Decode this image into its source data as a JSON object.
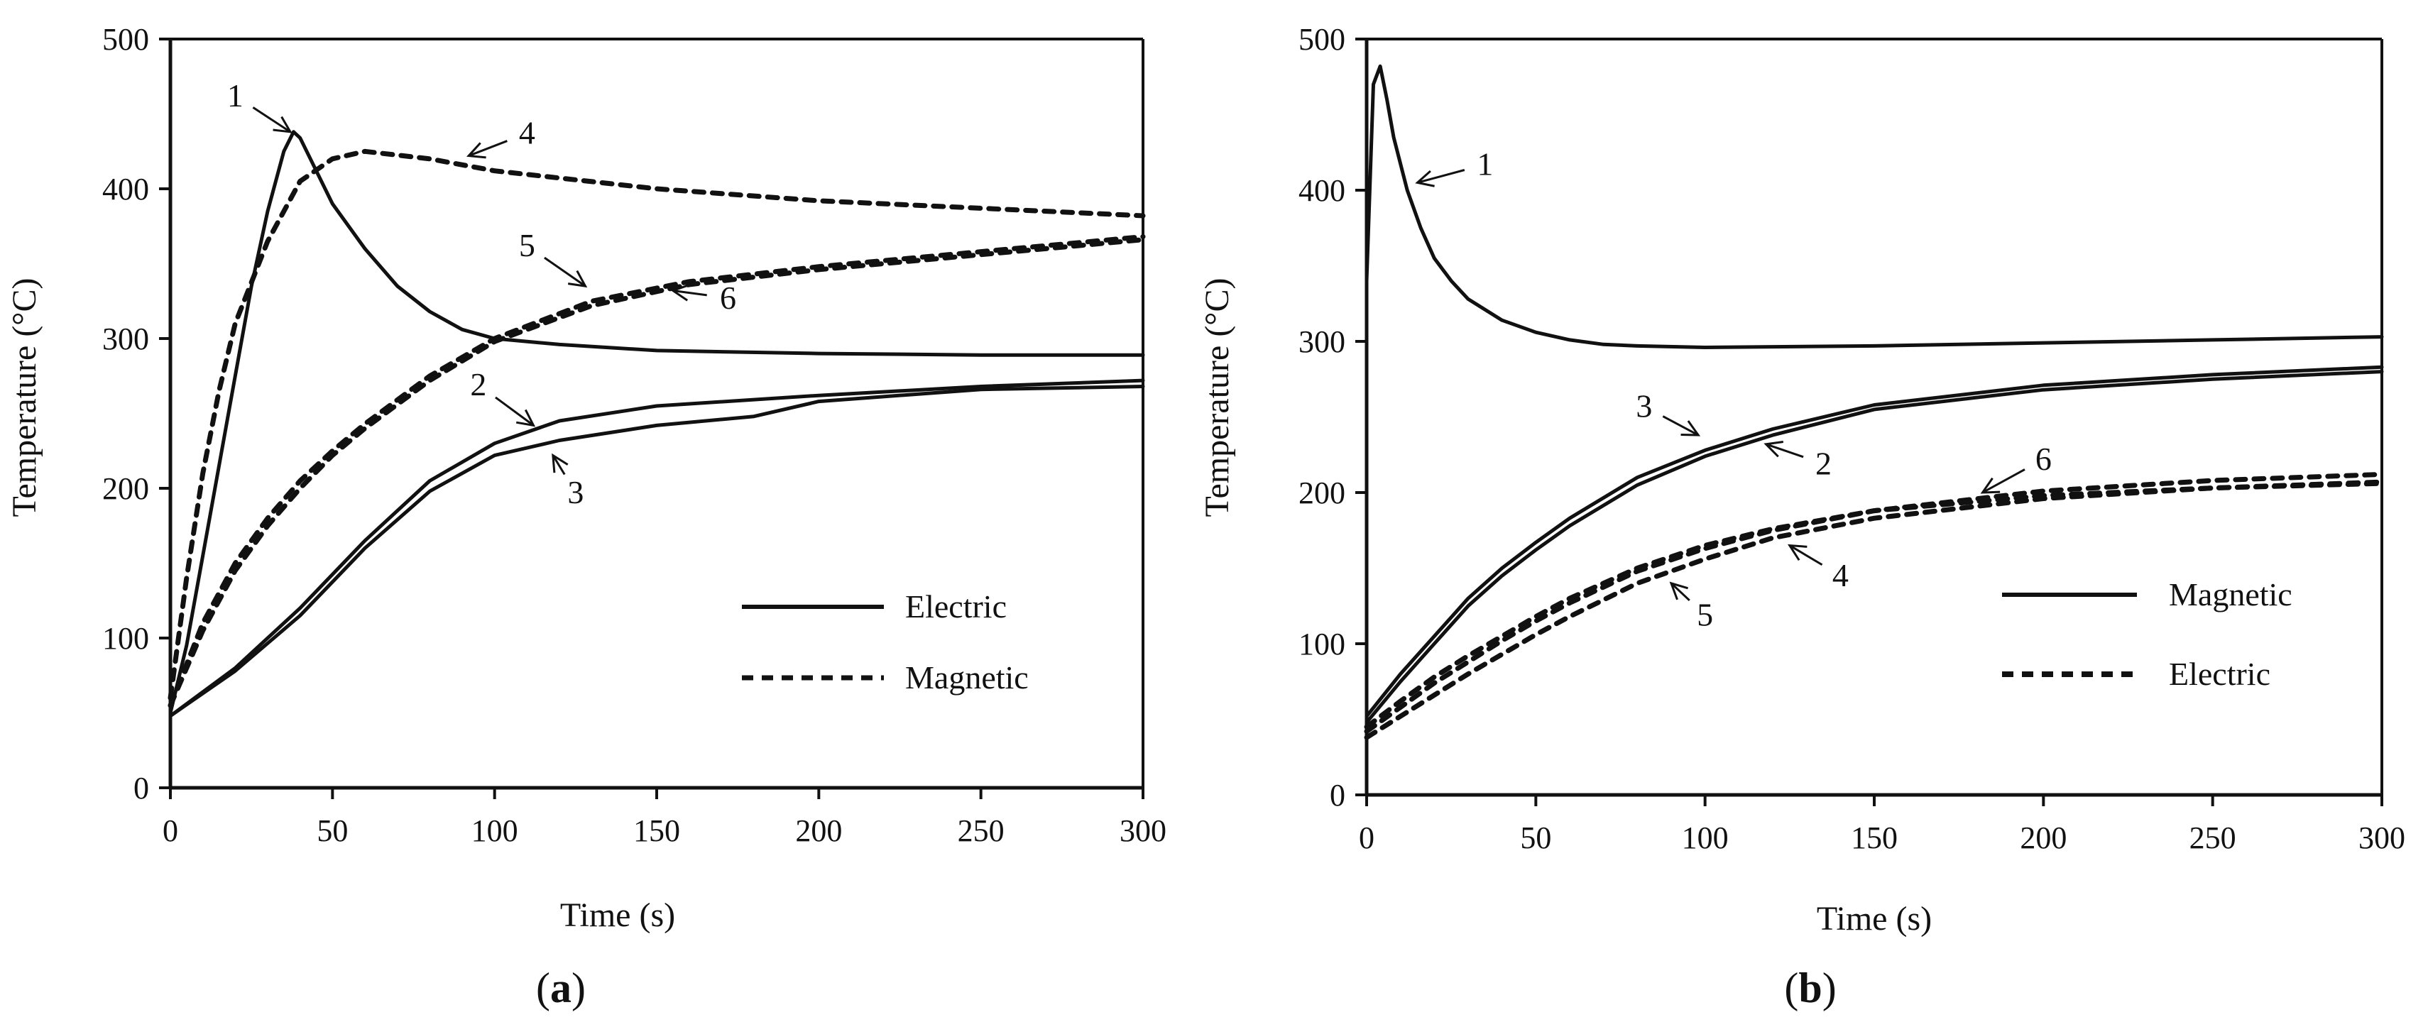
{
  "figure_captions": {
    "a": "(a)",
    "b": "(b)"
  },
  "caption_parts": {
    "a": {
      "open": "(",
      "letter": "a",
      "close": ")"
    },
    "b": {
      "open": "(",
      "letter": "b",
      "close": ")"
    }
  },
  "chart_data": [
    {
      "id": "a",
      "type": "line",
      "title": "",
      "xlabel": "Time (s)",
      "ylabel": "Temperature (°C)",
      "xlim": [
        0,
        300
      ],
      "ylim": [
        0,
        500
      ],
      "xticks": [
        0,
        50,
        100,
        150,
        200,
        250,
        300
      ],
      "yticks": [
        0,
        100,
        200,
        300,
        400,
        500
      ],
      "xtick_labels": [
        "0",
        "50",
        "100",
        "150",
        "200",
        "250",
        "300"
      ],
      "ytick_labels": [
        "0",
        "100",
        "200",
        "300",
        "400",
        "500"
      ],
      "legend": {
        "position": "bottom-right",
        "entries": [
          {
            "label": "Electric",
            "style": "solid"
          },
          {
            "label": "Magnetic",
            "style": "dashed"
          }
        ]
      },
      "series": [
        {
          "name": "1",
          "style": "solid",
          "x": [
            0,
            5,
            10,
            15,
            20,
            25,
            30,
            35,
            38,
            40,
            45,
            50,
            60,
            70,
            80,
            90,
            100,
            120,
            150,
            200,
            250,
            300
          ],
          "y": [
            50,
            95,
            155,
            215,
            275,
            335,
            385,
            425,
            438,
            434,
            412,
            390,
            360,
            335,
            318,
            306,
            300,
            296,
            292,
            290,
            289,
            289
          ]
        },
        {
          "name": "2",
          "style": "solid",
          "x": [
            0,
            20,
            40,
            60,
            80,
            100,
            120,
            150,
            200,
            250,
            300
          ],
          "y": [
            48,
            80,
            120,
            165,
            205,
            230,
            245,
            255,
            262,
            268,
            272
          ]
        },
        {
          "name": "3",
          "style": "solid",
          "x": [
            0,
            20,
            40,
            60,
            80,
            100,
            120,
            150,
            180,
            200,
            250,
            300
          ],
          "y": [
            48,
            78,
            115,
            160,
            198,
            222,
            232,
            242,
            248,
            258,
            266,
            268
          ]
        },
        {
          "name": "4",
          "style": "dashed",
          "x": [
            0,
            5,
            10,
            15,
            20,
            30,
            40,
            50,
            60,
            80,
            100,
            150,
            200,
            250,
            300
          ],
          "y": [
            60,
            140,
            210,
            265,
            310,
            365,
            405,
            420,
            425,
            420,
            412,
            400,
            392,
            387,
            382
          ]
        },
        {
          "name": "5",
          "style": "dashed",
          "x": [
            0,
            10,
            20,
            30,
            40,
            50,
            60,
            80,
            100,
            130,
            160,
            200,
            250,
            300
          ],
          "y": [
            55,
            110,
            150,
            180,
            205,
            225,
            243,
            275,
            300,
            325,
            338,
            348,
            358,
            368
          ]
        },
        {
          "name": "6",
          "style": "dashed",
          "x": [
            0,
            10,
            20,
            30,
            40,
            50,
            60,
            80,
            100,
            130,
            160,
            200,
            250,
            300
          ],
          "y": [
            55,
            105,
            145,
            175,
            200,
            222,
            240,
            272,
            298,
            322,
            336,
            346,
            356,
            366
          ]
        }
      ],
      "annotations": [
        {
          "text": "1",
          "x": 20,
          "y": 455,
          "ax": 37,
          "ay": 438
        },
        {
          "text": "4",
          "x": 110,
          "y": 430,
          "ax": 92,
          "ay": 422
        },
        {
          "text": "5",
          "x": 110,
          "y": 355,
          "ax": 128,
          "ay": 335
        },
        {
          "text": "6",
          "x": 172,
          "y": 320,
          "ax": 155,
          "ay": 332
        },
        {
          "text": "2",
          "x": 95,
          "y": 262,
          "ax": 112,
          "ay": 242
        },
        {
          "text": "3",
          "x": 125,
          "y": 190,
          "ax": 118,
          "ay": 222
        }
      ]
    },
    {
      "id": "b",
      "type": "line",
      "title": "",
      "xlabel": "Time (s)",
      "ylabel": "Temperature (°C)",
      "xlim": [
        0,
        300
      ],
      "ylim": [
        0,
        500
      ],
      "xticks": [
        0,
        50,
        100,
        150,
        200,
        250,
        300
      ],
      "yticks": [
        0,
        100,
        200,
        300,
        400,
        500
      ],
      "xtick_labels": [
        "0",
        "50",
        "100",
        "150",
        "200",
        "250",
        "300"
      ],
      "ytick_labels": [
        "0",
        "100",
        "200",
        "300",
        "400",
        "500"
      ],
      "legend": {
        "position": "bottom-right",
        "entries": [
          {
            "label": "Magnetic",
            "style": "solid"
          },
          {
            "label": "Electric",
            "style": "dashed"
          }
        ]
      },
      "series": [
        {
          "name": "1",
          "style": "solid",
          "x": [
            0,
            2,
            4,
            6,
            8,
            12,
            16,
            20,
            25,
            30,
            40,
            50,
            60,
            70,
            80,
            100,
            150,
            200,
            250,
            300
          ],
          "y": [
            340,
            470,
            482,
            460,
            435,
            400,
            375,
            355,
            340,
            328,
            314,
            306,
            301,
            298,
            297,
            296,
            297,
            299,
            301,
            303
          ]
        },
        {
          "name": "2",
          "style": "solid",
          "x": [
            0,
            10,
            20,
            30,
            40,
            50,
            60,
            80,
            100,
            120,
            150,
            200,
            250,
            300
          ],
          "y": [
            48,
            75,
            100,
            125,
            145,
            162,
            178,
            205,
            224,
            238,
            255,
            268,
            275,
            280
          ]
        },
        {
          "name": "3",
          "style": "solid",
          "x": [
            0,
            10,
            20,
            30,
            40,
            50,
            60,
            80,
            100,
            120,
            150,
            200,
            250,
            300
          ],
          "y": [
            52,
            80,
            105,
            130,
            150,
            167,
            183,
            210,
            228,
            242,
            258,
            271,
            278,
            283
          ]
        },
        {
          "name": "4",
          "style": "dashed",
          "x": [
            0,
            10,
            20,
            30,
            40,
            50,
            60,
            80,
            100,
            120,
            150,
            200,
            250,
            300
          ],
          "y": [
            45,
            62,
            78,
            92,
            105,
            118,
            130,
            150,
            165,
            176,
            188,
            198,
            203,
            206
          ]
        },
        {
          "name": "5",
          "style": "dashed",
          "x": [
            0,
            10,
            20,
            30,
            40,
            50,
            60,
            80,
            100,
            120,
            150,
            200,
            250,
            300
          ],
          "y": [
            38,
            52,
            66,
            80,
            93,
            106,
            118,
            140,
            156,
            170,
            183,
            196,
            203,
            207
          ]
        },
        {
          "name": "6",
          "style": "dashed",
          "x": [
            0,
            10,
            20,
            30,
            40,
            50,
            60,
            80,
            100,
            120,
            150,
            200,
            250,
            300
          ],
          "y": [
            42,
            58,
            74,
            88,
            102,
            115,
            127,
            148,
            163,
            175,
            188,
            201,
            208,
            212
          ]
        }
      ],
      "annotations": [
        {
          "text": "1",
          "x": 35,
          "y": 410,
          "ax": 15,
          "ay": 405
        },
        {
          "text": "3",
          "x": 82,
          "y": 250,
          "ax": 98,
          "ay": 238
        },
        {
          "text": "2",
          "x": 135,
          "y": 212,
          "ax": 118,
          "ay": 232
        },
        {
          "text": "6",
          "x": 200,
          "y": 215,
          "ax": 182,
          "ay": 200
        },
        {
          "text": "4",
          "x": 140,
          "y": 138,
          "ax": 125,
          "ay": 165
        },
        {
          "text": "5",
          "x": 100,
          "y": 112,
          "ax": 90,
          "ay": 140
        }
      ]
    }
  ]
}
